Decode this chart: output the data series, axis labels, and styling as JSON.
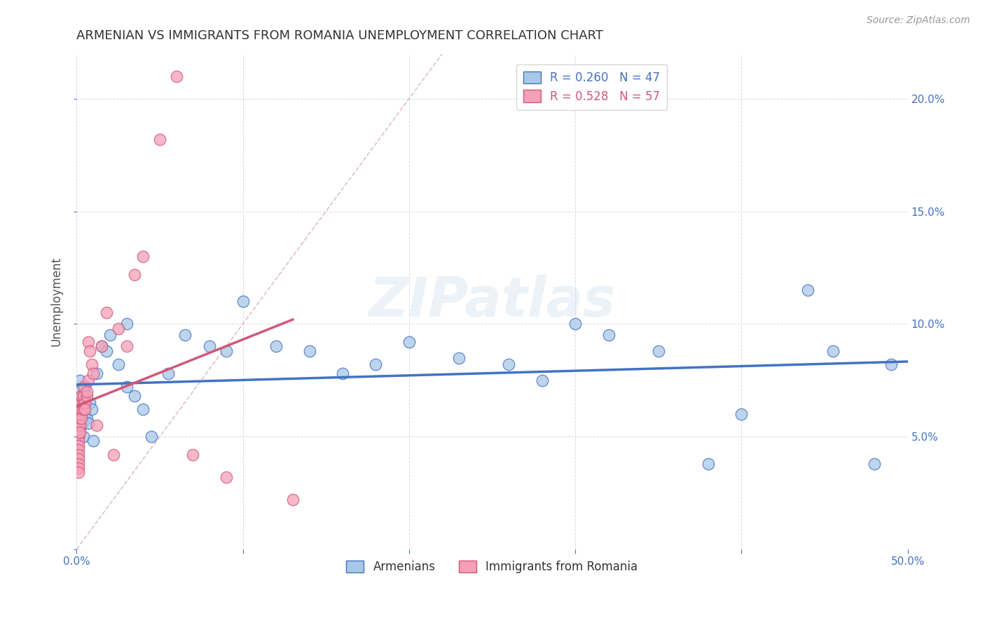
{
  "title": "ARMENIAN VS IMMIGRANTS FROM ROMANIA UNEMPLOYMENT CORRELATION CHART",
  "source": "Source: ZipAtlas.com",
  "ylabel": "Unemployment",
  "xlim": [
    0,
    0.5
  ],
  "ylim": [
    0,
    0.22
  ],
  "xticks": [
    0.0,
    0.1,
    0.2,
    0.3,
    0.4,
    0.5
  ],
  "yticks": [
    0.0,
    0.05,
    0.1,
    0.15,
    0.2
  ],
  "legend_entries": [
    {
      "label": "R = 0.260   N = 47",
      "color": "#a8c8e8"
    },
    {
      "label": "R = 0.528   N = 57",
      "color": "#f4a0b8"
    }
  ],
  "legend_labels_bottom": [
    "Armenians",
    "Immigrants from Romania"
  ],
  "armenians_fill": "#a8c8e8",
  "romania_fill": "#f4a0b8",
  "armenians_edge": "#4472c4",
  "romania_edge": "#d05878",
  "armenians_line_color": "#4472c4",
  "romania_line_color": "#d05878",
  "diagonal_line_color": "#d8b0be",
  "background_color": "#ffffff",
  "watermark_text": "ZIPatlas",
  "title_color": "#333333",
  "armenians_x": [
    0.001,
    0.001,
    0.002,
    0.002,
    0.003,
    0.003,
    0.004,
    0.004,
    0.005,
    0.005,
    0.006,
    0.007,
    0.008,
    0.009,
    0.01,
    0.012,
    0.015,
    0.018,
    0.02,
    0.025,
    0.03,
    0.03,
    0.035,
    0.04,
    0.045,
    0.055,
    0.065,
    0.08,
    0.09,
    0.1,
    0.12,
    0.14,
    0.16,
    0.18,
    0.2,
    0.23,
    0.26,
    0.28,
    0.3,
    0.32,
    0.35,
    0.38,
    0.4,
    0.44,
    0.455,
    0.48,
    0.49
  ],
  "armenians_y": [
    0.065,
    0.07,
    0.06,
    0.075,
    0.055,
    0.068,
    0.05,
    0.068,
    0.072,
    0.06,
    0.058,
    0.056,
    0.065,
    0.062,
    0.048,
    0.078,
    0.09,
    0.088,
    0.095,
    0.082,
    0.072,
    0.1,
    0.068,
    0.062,
    0.05,
    0.078,
    0.095,
    0.09,
    0.088,
    0.11,
    0.09,
    0.088,
    0.078,
    0.082,
    0.092,
    0.085,
    0.082,
    0.075,
    0.1,
    0.095,
    0.088,
    0.038,
    0.06,
    0.115,
    0.088,
    0.038,
    0.082
  ],
  "romania_x": [
    0.001,
    0.001,
    0.001,
    0.001,
    0.001,
    0.001,
    0.001,
    0.001,
    0.001,
    0.001,
    0.001,
    0.001,
    0.001,
    0.001,
    0.001,
    0.001,
    0.001,
    0.001,
    0.001,
    0.001,
    0.002,
    0.002,
    0.002,
    0.002,
    0.002,
    0.002,
    0.003,
    0.003,
    0.003,
    0.003,
    0.003,
    0.004,
    0.004,
    0.004,
    0.004,
    0.005,
    0.005,
    0.006,
    0.006,
    0.007,
    0.007,
    0.008,
    0.009,
    0.01,
    0.012,
    0.015,
    0.018,
    0.022,
    0.025,
    0.03,
    0.035,
    0.04,
    0.05,
    0.06,
    0.07,
    0.09,
    0.13
  ],
  "romania_y": [
    0.05,
    0.052,
    0.053,
    0.055,
    0.056,
    0.058,
    0.06,
    0.062,
    0.063,
    0.065,
    0.05,
    0.052,
    0.048,
    0.046,
    0.044,
    0.042,
    0.04,
    0.038,
    0.036,
    0.034,
    0.058,
    0.06,
    0.062,
    0.065,
    0.055,
    0.052,
    0.06,
    0.062,
    0.065,
    0.068,
    0.058,
    0.062,
    0.065,
    0.068,
    0.072,
    0.065,
    0.062,
    0.068,
    0.07,
    0.075,
    0.092,
    0.088,
    0.082,
    0.078,
    0.055,
    0.09,
    0.105,
    0.042,
    0.098,
    0.09,
    0.122,
    0.13,
    0.182,
    0.21,
    0.042,
    0.032,
    0.022
  ]
}
